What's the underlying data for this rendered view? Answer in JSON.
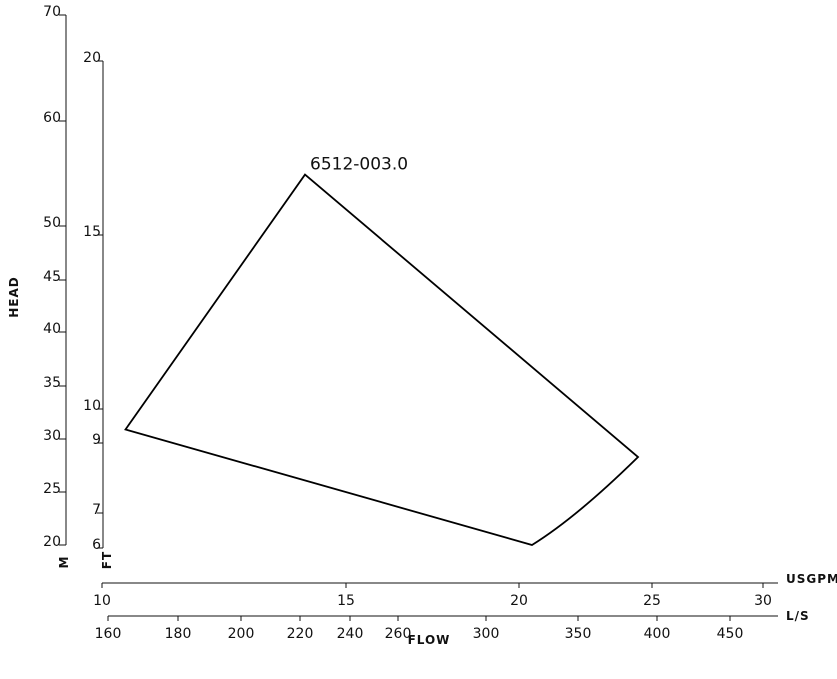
{
  "chart_data": {
    "type": "line",
    "title": "",
    "ylabel": "HEAD",
    "xlabel": "FLOW",
    "y_axes": [
      {
        "unit": "FT",
        "ticks": [
          20,
          25,
          30,
          35,
          40,
          45,
          50,
          60,
          70
        ],
        "range": [
          20,
          70
        ]
      },
      {
        "unit": "M",
        "ticks": [
          6,
          7,
          9,
          10,
          15,
          20
        ],
        "range": [
          6,
          20
        ]
      }
    ],
    "x_axes": [
      {
        "unit": "USGPM",
        "ticks": [
          160,
          180,
          200,
          220,
          240,
          260,
          300,
          350,
          400,
          450
        ],
        "range": [
          160,
          450
        ]
      },
      {
        "unit": "L/S",
        "ticks": [
          10,
          15,
          20,
          25,
          30
        ],
        "range": [
          10,
          30
        ]
      }
    ],
    "series": [
      {
        "name": "6512-003.0",
        "x_unit": "USGPM",
        "y_unit": "FT",
        "points": [
          [
            165,
            30.9
          ],
          [
            222,
            54.9
          ],
          [
            388,
            28.3
          ],
          [
            325,
            20.0
          ]
        ]
      }
    ],
    "grid": false,
    "legend": "none"
  }
}
